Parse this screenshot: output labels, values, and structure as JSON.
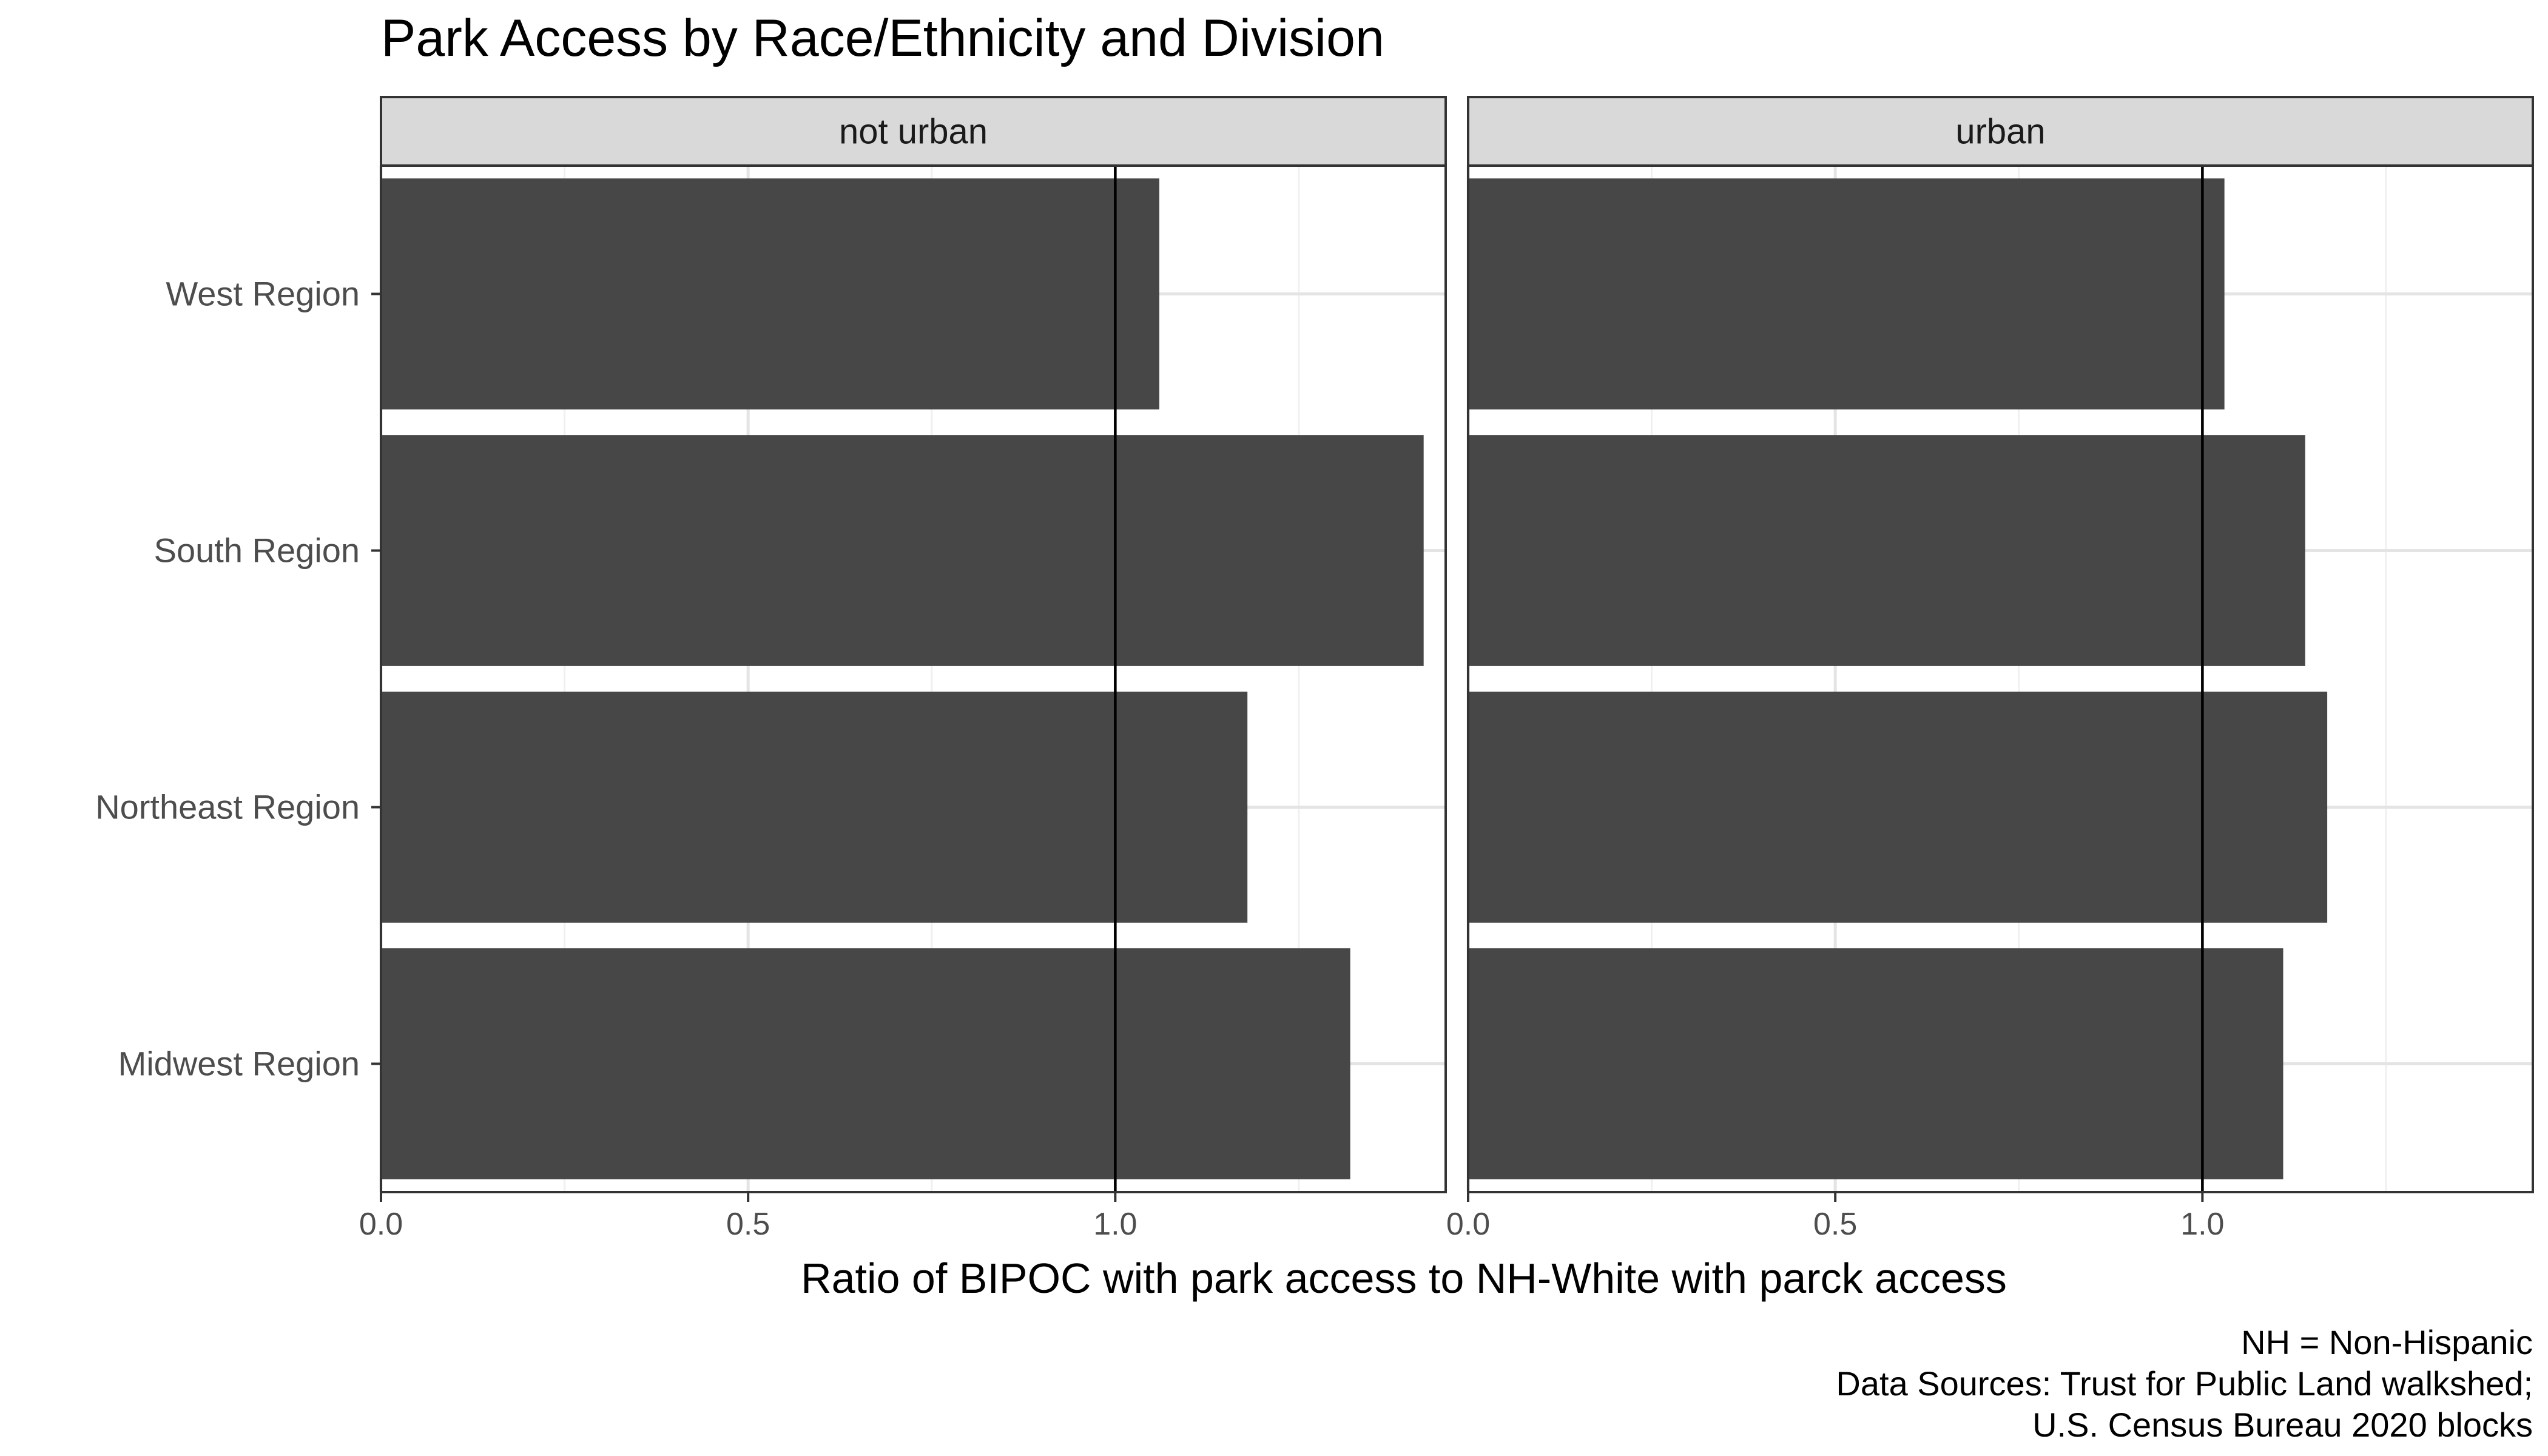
{
  "chart_data": {
    "type": "bar",
    "orientation": "horizontal",
    "title": "Park Access by Race/Ethnicity and Division",
    "xlabel": "Ratio of BIPOC with park access to NH-White with parck access",
    "ylabel": "",
    "categories": [
      "West Region",
      "South Region",
      "Northeast Region",
      "Midwest Region"
    ],
    "xlim": [
      0,
      1.45
    ],
    "xticks": [
      "0.0",
      "0.5",
      "1.0"
    ],
    "xtick_values": [
      0,
      0.5,
      1.0
    ],
    "reference_line": 1.0,
    "grid": true,
    "bar_color": "#474747",
    "panels": [
      {
        "name": "not urban",
        "values": [
          1.06,
          1.42,
          1.18,
          1.32
        ]
      },
      {
        "name": "urban",
        "values": [
          1.03,
          1.14,
          1.17,
          1.11
        ]
      }
    ],
    "caption": [
      "NH = Non-Hispanic",
      "Data Sources: Trust for Public Land walkshed;",
      "U.S. Census Bureau 2020 blocks"
    ]
  }
}
